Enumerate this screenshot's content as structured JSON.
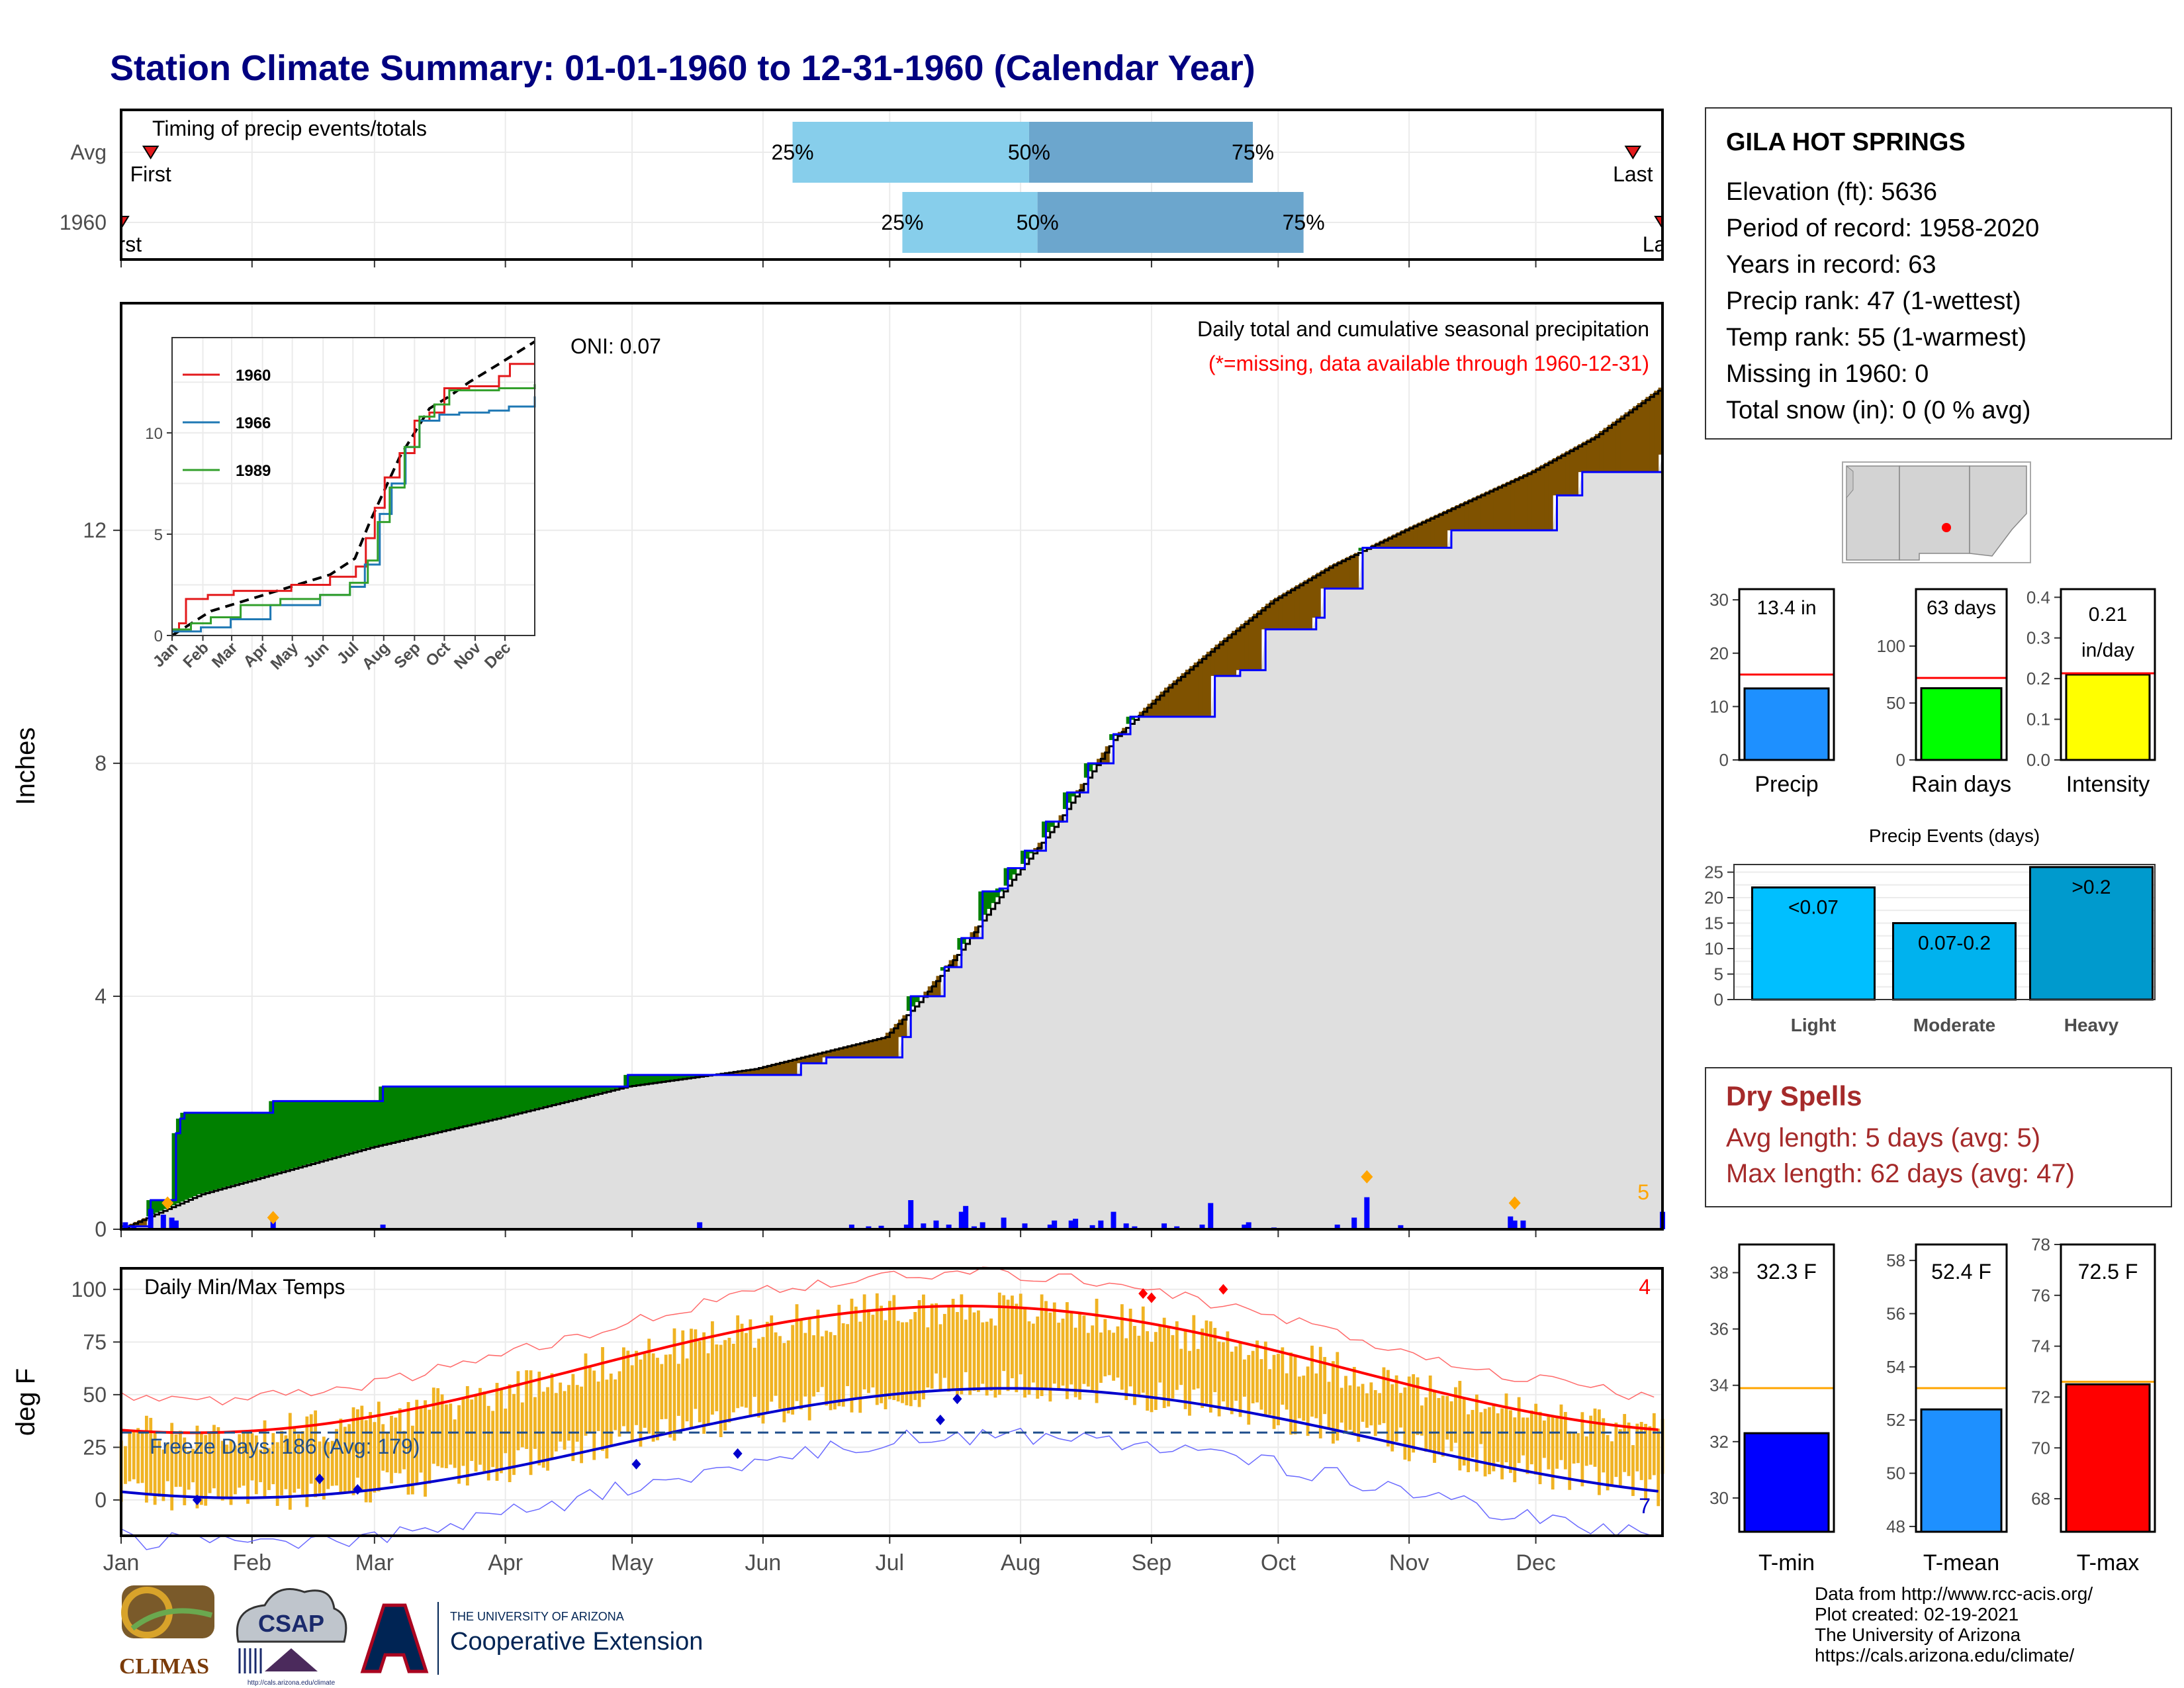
{
  "title": "Station Climate Summary: 01-01-1960 to 12-31-1960 (Calendar Year)",
  "timing": {
    "label": "Timing of precip events/totals",
    "rows": [
      {
        "name": "Avg",
        "first_doy": 8,
        "last_doy": 359,
        "first_label": "First",
        "last_label": "Last",
        "q25_doy": 160,
        "q50_doy": 216,
        "q75_doy": 269,
        "q25": "25%",
        "q50": "50%",
        "q75": "75%"
      },
      {
        "name": "1960",
        "first_doy": 1,
        "last_doy": 366,
        "first_label": "First",
        "last_label": "Last",
        "q25_doy": 186,
        "q50_doy": 218,
        "q75_doy": 281,
        "q25": "25%",
        "q50": "50%",
        "q75": "75%"
      }
    ]
  },
  "precip_panel": {
    "ylabel": "Inches",
    "yticks": [
      0,
      4,
      8,
      12
    ],
    "ylim": [
      0,
      15.9
    ],
    "title": "Daily total and cumulative seasonal precipitation",
    "subtitle": "(*=missing, data available through 1960-12-31)",
    "oni": "ONI: 0.07",
    "corner_count": "5"
  },
  "inset": {
    "yticks": [
      0,
      5,
      10
    ],
    "months": [
      "Jan",
      "Feb",
      "Mar",
      "Apr",
      "May",
      "Jun",
      "Jul",
      "Aug",
      "Sep",
      "Oct",
      "Nov",
      "Dec"
    ],
    "legend": [
      {
        "name": "1960",
        "color": "#e31a1c"
      },
      {
        "name": "1966",
        "color": "#1f78b4"
      },
      {
        "name": "1989",
        "color": "#33a02c"
      }
    ]
  },
  "temp_panel": {
    "ylabel": "deg F",
    "title": "Daily Min/Max Temps",
    "yticks": [
      0,
      25,
      50,
      75,
      100
    ],
    "ylim": [
      -17,
      110
    ],
    "freeze_label": "Freeze Days: 186 (Avg: 179)",
    "freeze_line": 32,
    "record_high_count": "4",
    "record_low_count": "7"
  },
  "months": [
    "Jan",
    "Feb",
    "Mar",
    "Apr",
    "May",
    "Jun",
    "Jul",
    "Aug",
    "Sep",
    "Oct",
    "Nov",
    "Dec"
  ],
  "station": {
    "name": "GILA HOT SPRINGS",
    "lines": [
      "Elevation (ft): 5636",
      "Period of record: 1958-2020",
      "Years in record: 63",
      "Precip rank: 47 (1-wettest)",
      "Temp rank: 55 (1-warmest)",
      "Missing in 1960: 0",
      "Total snow (in): 0 (0 % avg)"
    ]
  },
  "summary_bars": [
    {
      "label": "Precip",
      "value_label": "13.4 in",
      "value": 13.4,
      "avg": 16,
      "ylim": [
        0,
        32
      ],
      "yticks": [
        0,
        10,
        20,
        30
      ],
      "color": "#1e90ff"
    },
    {
      "label": "Rain days",
      "value_label": "63 days",
      "value": 63,
      "avg": 72,
      "ylim": [
        0,
        150
      ],
      "yticks": [
        0,
        50,
        100
      ],
      "color": "#00ff00"
    },
    {
      "label": "Intensity",
      "value_label": "0.21",
      "value_label2": "in/day",
      "value": 0.21,
      "avg": 0.213,
      "ylim": [
        0,
        0.42
      ],
      "yticks": [
        "0.0",
        "0.1",
        "0.2",
        "0.3",
        "0.4"
      ],
      "color": "#ffff00"
    }
  ],
  "precip_events": {
    "title": "Precip Events (days)",
    "yticks": [
      0,
      5,
      10,
      15,
      20,
      25
    ],
    "ylim": [
      0,
      26.5
    ],
    "bars": [
      {
        "label": "Light",
        "bin": "<0.07",
        "value": 22,
        "color": "#00bfff"
      },
      {
        "label": "Moderate",
        "bin": "0.07-0.2",
        "value": 15,
        "color": "#00b2ee"
      },
      {
        "label": "Heavy",
        "bin": ">0.2",
        "value": 26,
        "color": "#009acd"
      }
    ]
  },
  "dry_spells": {
    "title": "Dry Spells",
    "lines": [
      "Avg length: 5 days (avg: 5)",
      "Max length: 62 days (avg: 47)"
    ]
  },
  "temp_bars": [
    {
      "label": "T-min",
      "value_label": "32.3 F",
      "value": 32.3,
      "avg": 33.9,
      "ylim": [
        28.8,
        39
      ],
      "yticks": [
        30,
        32,
        34,
        36,
        38
      ],
      "color": "#0000ff"
    },
    {
      "label": "T-mean",
      "value_label": "52.4 F",
      "value": 52.4,
      "avg": 53.2,
      "ylim": [
        47.8,
        58.6
      ],
      "yticks": [
        48,
        50,
        52,
        54,
        56,
        58
      ],
      "color": "#1e90ff"
    },
    {
      "label": "T-max",
      "value_label": "72.5 F",
      "value": 72.5,
      "avg": 72.6,
      "ylim": [
        66.7,
        78
      ],
      "yticks": [
        68,
        70,
        72,
        74,
        76,
        78
      ],
      "color": "#ff0000"
    }
  ],
  "credits": [
    "Data from http://www.rcc-acis.org/",
    "Plot created: 02-19-2021",
    "The University of Arizona",
    "https://cals.arizona.edu/climate/"
  ],
  "logos": {
    "climas": "CLIMAS",
    "csap": "CSAP",
    "csap_url": "http://cals.arizona.edu/climate",
    "ua_line1": "THE UNIVERSITY OF ARIZONA",
    "ua_line2": "Cooperative Extension"
  },
  "chart_data": {
    "type": "area",
    "title": "Daily total and cumulative seasonal precipitation",
    "ylabel": "Inches",
    "ylim": [
      0,
      15.9
    ],
    "series": [
      {
        "name": "1960",
        "points": [
          [
            1,
            0.05
          ],
          [
            8,
            0.5
          ],
          [
            14,
            1.65
          ],
          [
            15,
            1.9
          ],
          [
            16,
            2.0
          ],
          [
            36,
            2.0
          ],
          [
            37,
            2.2
          ],
          [
            62,
            2.2
          ],
          [
            63,
            2.45
          ],
          [
            120,
            2.45
          ],
          [
            121,
            2.65
          ],
          [
            161,
            2.65
          ],
          [
            162,
            2.85
          ],
          [
            168,
            2.95
          ],
          [
            185,
            2.95
          ],
          [
            186,
            3.3
          ],
          [
            188,
            4.0
          ],
          [
            196,
            4.5
          ],
          [
            200,
            5.0
          ],
          [
            205,
            5.8
          ],
          [
            209,
            5.85
          ],
          [
            211,
            6.2
          ],
          [
            215,
            6.5
          ],
          [
            220,
            7.0
          ],
          [
            225,
            7.5
          ],
          [
            230,
            8.0
          ],
          [
            236,
            8.5
          ],
          [
            240,
            8.8
          ],
          [
            258,
            8.8
          ],
          [
            260,
            9.5
          ],
          [
            266,
            9.6
          ],
          [
            272,
            10.3
          ],
          [
            284,
            10.5
          ],
          [
            286,
            11.0
          ],
          [
            295,
            11.7
          ],
          [
            315,
            11.7
          ],
          [
            316,
            12.0
          ],
          [
            340,
            12.0
          ],
          [
            341,
            12.6
          ],
          [
            346,
            12.6
          ],
          [
            347,
            13.0
          ],
          [
            365,
            13.0
          ],
          [
            366,
            13.3
          ]
        ]
      },
      {
        "name": "Avg",
        "points": [
          [
            1,
            0
          ],
          [
            20,
            0.6
          ],
          [
            40,
            1.0
          ],
          [
            60,
            1.4
          ],
          [
            90,
            1.9
          ],
          [
            121,
            2.45
          ],
          [
            151,
            2.75
          ],
          [
            182,
            3.3
          ],
          [
            190,
            3.9
          ],
          [
            200,
            4.8
          ],
          [
            212,
            6.0
          ],
          [
            223,
            7.0
          ],
          [
            236,
            8.4
          ],
          [
            249,
            9.3
          ],
          [
            262,
            10.1
          ],
          [
            274,
            10.8
          ],
          [
            288,
            11.4
          ],
          [
            305,
            12.0
          ],
          [
            320,
            12.5
          ],
          [
            335,
            13.0
          ],
          [
            350,
            13.6
          ],
          [
            366,
            14.45
          ]
        ]
      }
    ],
    "daily_precip": [
      [
        2,
        0.12
      ],
      [
        4,
        0.05
      ],
      [
        8,
        0.35
      ],
      [
        11,
        0.25
      ],
      [
        13,
        0.2
      ],
      [
        14,
        0.15
      ],
      [
        37,
        0.2
      ],
      [
        63,
        0.08
      ],
      [
        138,
        0.12
      ],
      [
        174,
        0.08
      ],
      [
        178,
        0.05
      ],
      [
        181,
        0.06
      ],
      [
        187,
        0.08
      ],
      [
        188,
        0.5
      ],
      [
        191,
        0.1
      ],
      [
        194,
        0.15
      ],
      [
        197,
        0.08
      ],
      [
        200,
        0.3
      ],
      [
        201,
        0.4
      ],
      [
        203,
        0.05
      ],
      [
        205,
        0.12
      ],
      [
        210,
        0.2
      ],
      [
        215,
        0.1
      ],
      [
        221,
        0.08
      ],
      [
        222,
        0.15
      ],
      [
        226,
        0.15
      ],
      [
        227,
        0.18
      ],
      [
        231,
        0.07
      ],
      [
        233,
        0.15
      ],
      [
        236,
        0.3
      ],
      [
        239,
        0.1
      ],
      [
        241,
        0.05
      ],
      [
        248,
        0.1
      ],
      [
        251,
        0.05
      ],
      [
        257,
        0.08
      ],
      [
        259,
        0.45
      ],
      [
        267,
        0.08
      ],
      [
        268,
        0.12
      ],
      [
        274,
        0.03
      ],
      [
        281,
        0.02
      ],
      [
        289,
        0.08
      ],
      [
        293,
        0.2
      ],
      [
        296,
        0.55
      ],
      [
        304,
        0.07
      ],
      [
        330,
        0.22
      ],
      [
        331,
        0.15
      ],
      [
        333,
        0.15
      ],
      [
        366,
        0.3
      ]
    ],
    "temps": {
      "tmax_range": [
        30,
        100
      ],
      "tmin_range": [
        -5,
        60
      ],
      "normal_max_peak": 92,
      "normal_min_peak": 56,
      "freeze_days": 186,
      "freeze_avg": 179
    }
  }
}
